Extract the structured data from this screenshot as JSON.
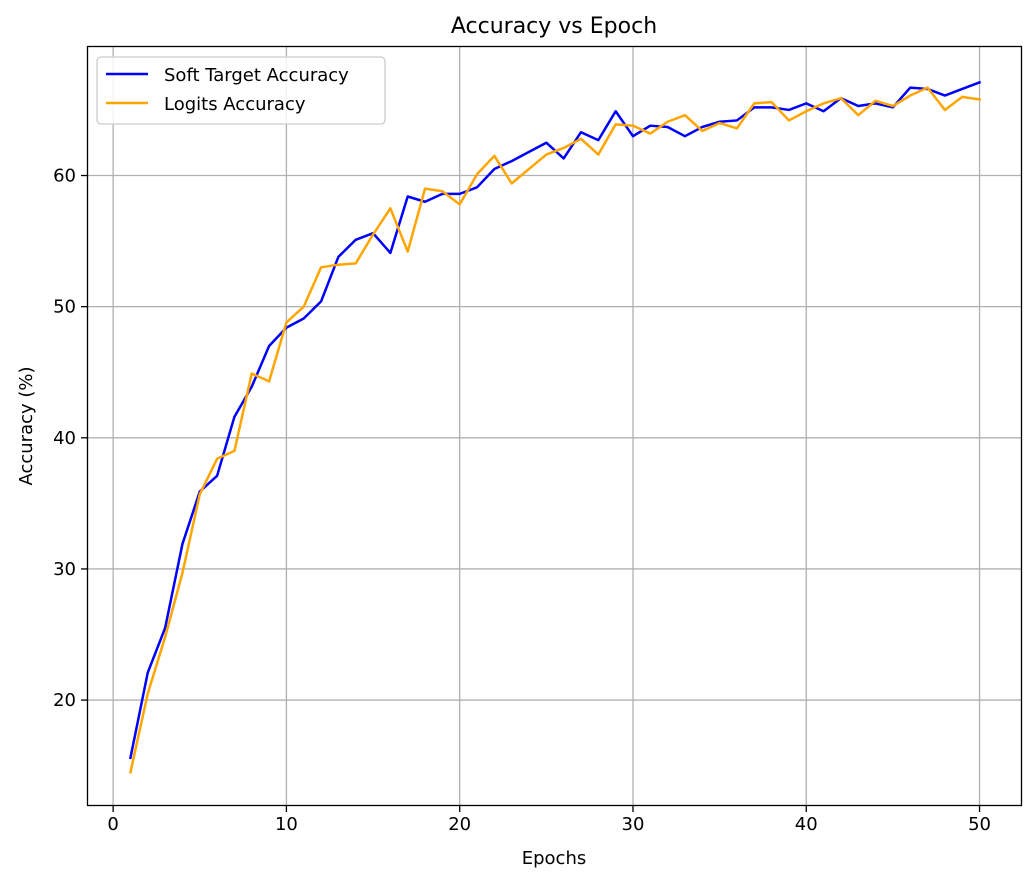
{
  "chart_data": {
    "type": "line",
    "title": "Accuracy vs Epoch",
    "xlabel": "Epochs",
    "ylabel": "Accuracy (%)",
    "xlim": [
      -1.45,
      52.45
    ],
    "ylim": [
      12.0,
      69.8
    ],
    "xticks": [
      0,
      10,
      20,
      30,
      40,
      50
    ],
    "yticks": [
      20,
      30,
      40,
      50,
      60
    ],
    "grid": true,
    "legend_position": "top-left",
    "x": [
      1,
      2,
      3,
      4,
      5,
      6,
      7,
      8,
      9,
      10,
      11,
      12,
      13,
      14,
      15,
      16,
      17,
      18,
      19,
      20,
      21,
      22,
      23,
      24,
      25,
      26,
      27,
      28,
      29,
      30,
      31,
      32,
      33,
      34,
      35,
      36,
      37,
      38,
      39,
      40,
      41,
      42,
      43,
      44,
      45,
      46,
      47,
      48,
      49,
      50
    ],
    "series": [
      {
        "name": "Soft Target Accuracy",
        "color": "#0000ff",
        "values": [
          15.6,
          22.1,
          25.5,
          31.9,
          35.9,
          37.1,
          41.6,
          43.9,
          47.0,
          48.4,
          49.1,
          50.4,
          53.8,
          55.1,
          55.6,
          54.1,
          58.4,
          58.0,
          58.6,
          58.6,
          59.1,
          60.5,
          61.1,
          61.8,
          62.5,
          61.3,
          63.3,
          62.7,
          64.9,
          63.0,
          63.8,
          63.7,
          63.0,
          63.7,
          64.1,
          64.2,
          65.2,
          65.2,
          65.0,
          65.5,
          64.9,
          65.9,
          65.3,
          65.5,
          65.2,
          66.7,
          66.6,
          66.1,
          66.6,
          67.1
        ]
      },
      {
        "name": "Logits Accuracy",
        "color": "#ffa500",
        "values": [
          14.5,
          20.5,
          24.8,
          29.7,
          35.7,
          38.4,
          39.0,
          44.9,
          44.3,
          48.8,
          50.0,
          53.0,
          53.2,
          53.3,
          55.5,
          57.5,
          54.2,
          59.0,
          58.8,
          57.8,
          60.1,
          61.5,
          59.4,
          60.5,
          61.6,
          62.1,
          62.8,
          61.6,
          63.9,
          63.8,
          63.2,
          64.1,
          64.6,
          63.4,
          64.0,
          63.6,
          65.5,
          65.6,
          64.2,
          64.9,
          65.5,
          65.9,
          64.6,
          65.7,
          65.3,
          66.1,
          66.7,
          65.0,
          66.0,
          65.8
        ]
      }
    ]
  }
}
